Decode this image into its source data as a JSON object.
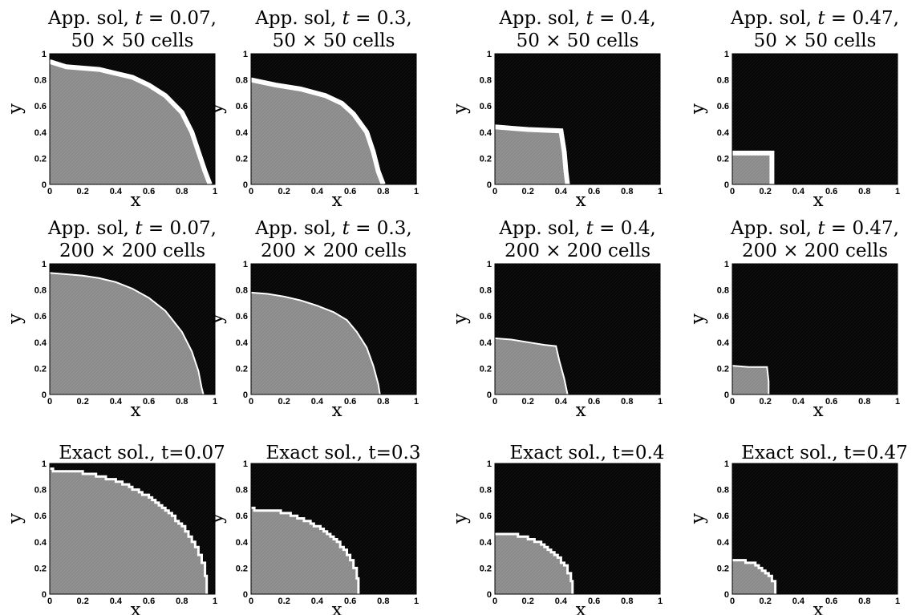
{
  "chart_data": [
    {
      "type": "heatmap",
      "title": "App. sol, t = 0.07,",
      "title2": "50 × 50 cells",
      "grid": "50x50",
      "t": "0.07",
      "kind": "approx",
      "xlabel": "x",
      "ylabel": "y",
      "xlim": [
        0,
        1
      ],
      "ylim": [
        0,
        1
      ],
      "xticks": [
        "0",
        "0.2",
        "0.4",
        "0.6",
        "0.8",
        "1"
      ],
      "yticks": [
        "0",
        "0.2",
        "0.4",
        "0.6",
        "0.8",
        "1"
      ],
      "front": [
        [
          0,
          0.94
        ],
        [
          0.1,
          0.9
        ],
        [
          0.3,
          0.88
        ],
        [
          0.4,
          0.85
        ],
        [
          0.5,
          0.82
        ],
        [
          0.6,
          0.76
        ],
        [
          0.7,
          0.68
        ],
        [
          0.8,
          0.55
        ],
        [
          0.86,
          0.4
        ],
        [
          0.9,
          0.25
        ],
        [
          0.94,
          0.1
        ],
        [
          0.97,
          0
        ]
      ]
    },
    {
      "type": "heatmap",
      "title": "App. sol, t = 0.3,",
      "title2": "50 × 50 cells",
      "grid": "50x50",
      "t": "0.3",
      "kind": "approx",
      "xlabel": "x",
      "ylabel": "y",
      "xlim": [
        0,
        1
      ],
      "ylim": [
        0,
        1
      ],
      "xticks": [
        "0",
        "0.2",
        "0.4",
        "0.6",
        "0.8",
        "1"
      ],
      "yticks": [
        "0",
        "0.2",
        "0.4",
        "0.6",
        "0.8",
        "1"
      ],
      "front": [
        [
          0,
          0.8
        ],
        [
          0.15,
          0.76
        ],
        [
          0.3,
          0.73
        ],
        [
          0.45,
          0.68
        ],
        [
          0.55,
          0.62
        ],
        [
          0.62,
          0.54
        ],
        [
          0.7,
          0.4
        ],
        [
          0.74,
          0.25
        ],
        [
          0.77,
          0.1
        ],
        [
          0.8,
          0
        ]
      ]
    },
    {
      "type": "heatmap",
      "title": "App. sol, t = 0.4,",
      "title2": "50 × 50 cells",
      "grid": "50x50",
      "t": "0.4",
      "kind": "approx",
      "xlabel": "x",
      "ylabel": "y",
      "xlim": [
        0,
        1
      ],
      "ylim": [
        0,
        1
      ],
      "xticks": [
        "0",
        "0.2",
        "0.4",
        "0.6",
        "0.8",
        "1"
      ],
      "yticks": [
        "0",
        "0.2",
        "0.4",
        "0.6",
        "0.8",
        "1"
      ],
      "front": [
        [
          0,
          0.44
        ],
        [
          0.2,
          0.42
        ],
        [
          0.4,
          0.41
        ],
        [
          0.42,
          0.25
        ],
        [
          0.43,
          0.1
        ],
        [
          0.44,
          0
        ]
      ]
    },
    {
      "type": "heatmap",
      "title": "App. sol, t = 0.47,",
      "title2": "50 × 50 cells",
      "grid": "50x50",
      "t": "0.47",
      "kind": "approx",
      "xlabel": "x",
      "ylabel": "y",
      "xlim": [
        0,
        1
      ],
      "ylim": [
        0,
        1
      ],
      "xticks": [
        "0",
        "0.2",
        "0.4",
        "0.6",
        "0.8",
        "1"
      ],
      "yticks": [
        "0",
        "0.2",
        "0.4",
        "0.6",
        "0.8",
        "1"
      ],
      "front": [
        [
          0,
          0.24
        ],
        [
          0.24,
          0.24
        ],
        [
          0.24,
          0
        ]
      ]
    },
    {
      "type": "heatmap",
      "title": "App. sol, t = 0.07,",
      "title2": "200 × 200 cells",
      "grid": "200x200",
      "t": "0.07",
      "kind": "approx",
      "xlabel": "x",
      "ylabel": "y",
      "xlim": [
        0,
        1
      ],
      "ylim": [
        0,
        1
      ],
      "xticks": [
        "0",
        "0.2",
        "0.4",
        "0.6",
        "0.8",
        "1"
      ],
      "yticks": [
        "0",
        "0.2",
        "0.4",
        "0.6",
        "0.8",
        "1"
      ],
      "front": [
        [
          0,
          0.93
        ],
        [
          0.1,
          0.92
        ],
        [
          0.2,
          0.91
        ],
        [
          0.3,
          0.89
        ],
        [
          0.4,
          0.86
        ],
        [
          0.5,
          0.81
        ],
        [
          0.6,
          0.74
        ],
        [
          0.7,
          0.64
        ],
        [
          0.8,
          0.48
        ],
        [
          0.86,
          0.33
        ],
        [
          0.9,
          0.18
        ],
        [
          0.92,
          0.05
        ],
        [
          0.93,
          0
        ]
      ]
    },
    {
      "type": "heatmap",
      "title": "App. sol, t = 0.3,",
      "title2": "200 × 200 cells",
      "grid": "200x200",
      "t": "0.3",
      "kind": "approx",
      "xlabel": "x",
      "ylabel": "y",
      "xlim": [
        0,
        1
      ],
      "ylim": [
        0,
        1
      ],
      "xticks": [
        "0",
        "0.2",
        "0.4",
        "0.6",
        "0.8",
        "1"
      ],
      "yticks": [
        "0",
        "0.2",
        "0.4",
        "0.6",
        "0.8",
        "1"
      ],
      "front": [
        [
          0,
          0.78
        ],
        [
          0.1,
          0.77
        ],
        [
          0.2,
          0.75
        ],
        [
          0.3,
          0.72
        ],
        [
          0.4,
          0.68
        ],
        [
          0.5,
          0.63
        ],
        [
          0.58,
          0.57
        ],
        [
          0.64,
          0.48
        ],
        [
          0.7,
          0.36
        ],
        [
          0.74,
          0.22
        ],
        [
          0.77,
          0.08
        ],
        [
          0.78,
          0
        ]
      ]
    },
    {
      "type": "heatmap",
      "title": "App. sol, t = 0.4,",
      "title2": "200 × 200 cells",
      "grid": "200x200",
      "t": "0.4",
      "kind": "approx",
      "xlabel": "x",
      "ylabel": "y",
      "xlim": [
        0,
        1
      ],
      "ylim": [
        0,
        1
      ],
      "xticks": [
        "0",
        "0.2",
        "0.4",
        "0.6",
        "0.8",
        "1"
      ],
      "yticks": [
        "0",
        "0.2",
        "0.4",
        "0.6",
        "0.8",
        "1"
      ],
      "front": [
        [
          0,
          0.43
        ],
        [
          0.1,
          0.42
        ],
        [
          0.2,
          0.4
        ],
        [
          0.3,
          0.38
        ],
        [
          0.37,
          0.37
        ],
        [
          0.39,
          0.26
        ],
        [
          0.42,
          0.12
        ],
        [
          0.44,
          0
        ]
      ]
    },
    {
      "type": "heatmap",
      "title": "App. sol, t = 0.47,",
      "title2": "200 × 200 cells",
      "grid": "200x200",
      "t": "0.47",
      "kind": "approx",
      "xlabel": "x",
      "ylabel": "y",
      "xlim": [
        0,
        1
      ],
      "ylim": [
        0,
        1
      ],
      "xticks": [
        "0",
        "0.2",
        "0.4",
        "0.6",
        "0.8",
        "1"
      ],
      "yticks": [
        "0",
        "0.2",
        "0.4",
        "0.6",
        "0.8",
        "1"
      ],
      "front": [
        [
          0,
          0.22
        ],
        [
          0.1,
          0.21
        ],
        [
          0.21,
          0.21
        ],
        [
          0.22,
          0.1
        ],
        [
          0.22,
          0
        ]
      ]
    },
    {
      "type": "heatmap",
      "title": "Exact sol., t=0.07",
      "grid": "",
      "t": "0.07",
      "kind": "exact",
      "xlabel": "x",
      "ylabel": "y",
      "xlim": [
        0,
        1
      ],
      "ylim": [
        0,
        1
      ],
      "xticks": [
        "0",
        "0.2",
        "0.4",
        "0.6",
        "0.8",
        "1"
      ],
      "yticks": [
        "0",
        "0.2",
        "0.4",
        "0.6",
        "0.8",
        "1"
      ],
      "radius": 0.95
    },
    {
      "type": "heatmap",
      "title": "Exact sol., t=0.3",
      "grid": "",
      "t": "0.3",
      "kind": "exact",
      "xlabel": "x",
      "ylabel": "y",
      "xlim": [
        0,
        1
      ],
      "ylim": [
        0,
        1
      ],
      "xticks": [
        "0",
        "0.2",
        "0.4",
        "0.6",
        "0.8",
        "1"
      ],
      "yticks": [
        "0",
        "0.2",
        "0.4",
        "0.6",
        "0.8",
        "1"
      ],
      "radius": 0.65
    },
    {
      "type": "heatmap",
      "title": "Exact sol., t=0.4",
      "grid": "",
      "t": "0.4",
      "kind": "exact",
      "xlabel": "x",
      "ylabel": "y",
      "xlim": [
        0,
        1
      ],
      "ylim": [
        0,
        1
      ],
      "xticks": [
        "0",
        "0.2",
        "0.4",
        "0.6",
        "0.8",
        "1"
      ],
      "yticks": [
        "0",
        "0.2",
        "0.4",
        "0.6",
        "0.8",
        "1"
      ],
      "radius": 0.47
    },
    {
      "type": "heatmap",
      "title": "Exact sol., t=0.47",
      "grid": "",
      "t": "0.47",
      "kind": "exact",
      "xlabel": "x",
      "ylabel": "y",
      "xlim": [
        0,
        1
      ],
      "ylim": [
        0,
        1
      ],
      "xticks": [
        "0",
        "0.2",
        "0.4",
        "0.6",
        "0.8",
        "1"
      ],
      "yticks": [
        "0",
        "0.2",
        "0.4",
        "0.6",
        "0.8",
        "1"
      ],
      "radius": 0.26
    }
  ],
  "colors": {
    "inside": "#8a8a8a",
    "outside": "#050505",
    "front": "#ffffff",
    "axis": "#000000"
  }
}
